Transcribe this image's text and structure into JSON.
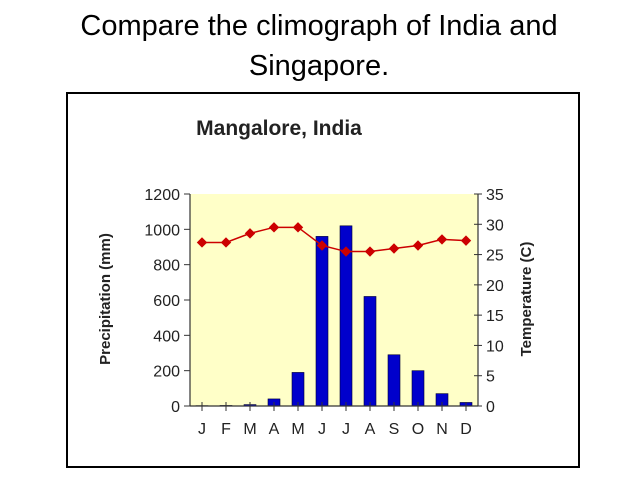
{
  "slide": {
    "title_line1": "Compare the climograph of India and",
    "title_line2": "Singapore."
  },
  "chart_data": {
    "type": "bar",
    "title": "Mangalore, India",
    "categories": [
      "J",
      "F",
      "M",
      "A",
      "M",
      "J",
      "J",
      "A",
      "S",
      "O",
      "N",
      "D"
    ],
    "series": [
      {
        "type": "bar",
        "axis": "left",
        "color": "#0000cc",
        "values": [
          2,
          3,
          8,
          40,
          190,
          960,
          1020,
          620,
          290,
          200,
          70,
          20
        ]
      },
      {
        "type": "line",
        "axis": "right",
        "color": "#cc0000",
        "marker": "diamond",
        "values": [
          27,
          27,
          28.5,
          29.5,
          29.5,
          26.5,
          25.5,
          25.5,
          26,
          26.5,
          27.5,
          27.3
        ]
      }
    ],
    "ylabel": "Precipitation (mm)",
    "ylim": [
      0,
      1200
    ],
    "yticks": [
      0,
      200,
      400,
      600,
      800,
      1000,
      1200
    ],
    "y2label": "Temperature (C)",
    "y2lim": [
      0,
      35
    ],
    "y2ticks": [
      0,
      5,
      10,
      15,
      20,
      25,
      30,
      35
    ],
    "plot_background": "#ffffc8",
    "grid": false,
    "legend": "none"
  }
}
